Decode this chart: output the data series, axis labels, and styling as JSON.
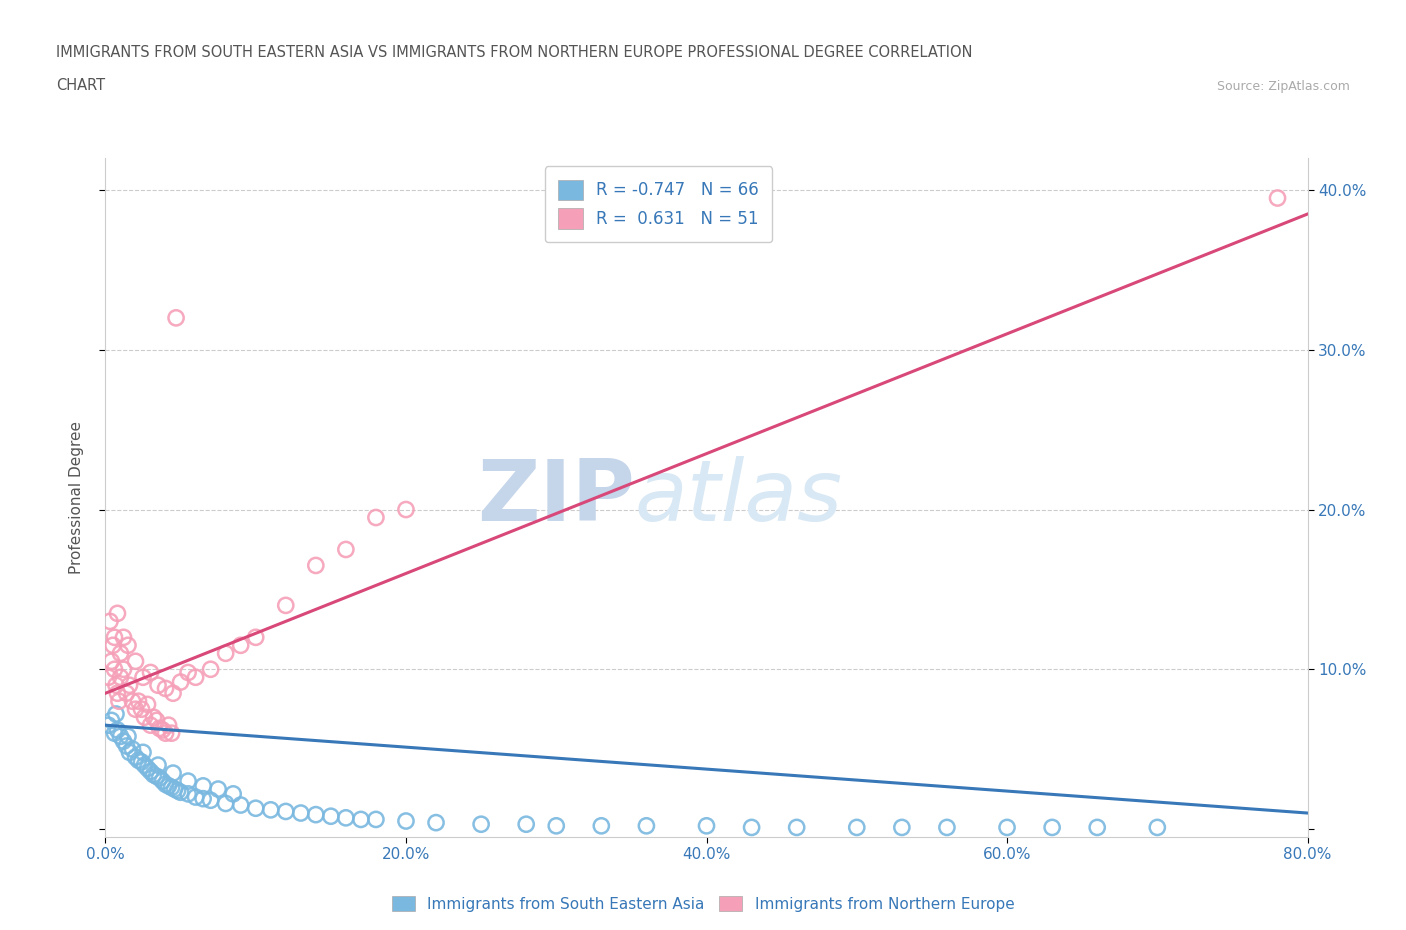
{
  "title_line1": "IMMIGRANTS FROM SOUTH EASTERN ASIA VS IMMIGRANTS FROM NORTHERN EUROPE PROFESSIONAL DEGREE CORRELATION",
  "title_line2": "CHART",
  "source_text": "Source: ZipAtlas.com",
  "ylabel": "Professional Degree",
  "xlim": [
    0.0,
    0.8
  ],
  "ylim": [
    -0.005,
    0.42
  ],
  "yticks": [
    0.0,
    0.1,
    0.2,
    0.3,
    0.4
  ],
  "ytick_labels_right": [
    "",
    "10.0%",
    "20.0%",
    "30.0%",
    "40.0%"
  ],
  "xticks": [
    0.0,
    0.2,
    0.4,
    0.6,
    0.8
  ],
  "xtick_labels": [
    "0.0%",
    "20.0%",
    "40.0%",
    "60.0%",
    "80.0%"
  ],
  "blue_color": "#7ab8e0",
  "pink_color": "#f5a0b8",
  "blue_line_color": "#3878b8",
  "pink_line_color": "#d84878",
  "legend_R1": "R = -0.747",
  "legend_N1": "N = 66",
  "legend_R2": "R =  0.631",
  "legend_N2": "N = 51",
  "watermark_zip": "ZIP",
  "watermark_atlas": "atlas",
  "watermark_color": "#ccd8ee",
  "background_color": "#ffffff",
  "grid_color": "#cccccc",
  "blue_scatter_x": [
    0.002,
    0.004,
    0.006,
    0.008,
    0.01,
    0.012,
    0.014,
    0.016,
    0.018,
    0.02,
    0.022,
    0.024,
    0.026,
    0.028,
    0.03,
    0.032,
    0.034,
    0.036,
    0.038,
    0.04,
    0.042,
    0.044,
    0.046,
    0.048,
    0.05,
    0.055,
    0.06,
    0.065,
    0.07,
    0.08,
    0.09,
    0.1,
    0.11,
    0.12,
    0.13,
    0.14,
    0.15,
    0.16,
    0.17,
    0.18,
    0.2,
    0.22,
    0.25,
    0.28,
    0.3,
    0.33,
    0.36,
    0.4,
    0.43,
    0.46,
    0.5,
    0.53,
    0.56,
    0.6,
    0.63,
    0.66,
    0.7,
    0.007,
    0.015,
    0.025,
    0.035,
    0.045,
    0.055,
    0.065,
    0.075,
    0.085
  ],
  "blue_scatter_y": [
    0.065,
    0.068,
    0.06,
    0.062,
    0.058,
    0.055,
    0.052,
    0.048,
    0.05,
    0.045,
    0.043,
    0.042,
    0.04,
    0.038,
    0.036,
    0.034,
    0.033,
    0.032,
    0.03,
    0.028,
    0.027,
    0.026,
    0.025,
    0.024,
    0.023,
    0.022,
    0.02,
    0.019,
    0.018,
    0.016,
    0.015,
    0.013,
    0.012,
    0.011,
    0.01,
    0.009,
    0.008,
    0.007,
    0.006,
    0.006,
    0.005,
    0.004,
    0.003,
    0.003,
    0.002,
    0.002,
    0.002,
    0.002,
    0.001,
    0.001,
    0.001,
    0.001,
    0.001,
    0.001,
    0.001,
    0.001,
    0.001,
    0.072,
    0.058,
    0.048,
    0.04,
    0.035,
    0.03,
    0.027,
    0.025,
    0.022
  ],
  "pink_scatter_x": [
    0.002,
    0.004,
    0.005,
    0.006,
    0.007,
    0.008,
    0.009,
    0.01,
    0.012,
    0.014,
    0.016,
    0.018,
    0.02,
    0.022,
    0.024,
    0.026,
    0.028,
    0.03,
    0.032,
    0.034,
    0.036,
    0.038,
    0.04,
    0.042,
    0.044,
    0.003,
    0.006,
    0.008,
    0.01,
    0.012,
    0.015,
    0.02,
    0.025,
    0.03,
    0.035,
    0.04,
    0.045,
    0.05,
    0.055,
    0.06,
    0.07,
    0.08,
    0.09,
    0.1,
    0.12,
    0.14,
    0.16,
    0.18,
    0.2,
    0.047,
    0.78
  ],
  "pink_scatter_y": [
    0.095,
    0.105,
    0.115,
    0.1,
    0.09,
    0.085,
    0.08,
    0.095,
    0.1,
    0.085,
    0.09,
    0.08,
    0.075,
    0.08,
    0.075,
    0.07,
    0.078,
    0.065,
    0.07,
    0.068,
    0.063,
    0.062,
    0.06,
    0.065,
    0.06,
    0.13,
    0.12,
    0.135,
    0.11,
    0.12,
    0.115,
    0.105,
    0.095,
    0.098,
    0.09,
    0.088,
    0.085,
    0.092,
    0.098,
    0.095,
    0.1,
    0.11,
    0.115,
    0.12,
    0.14,
    0.165,
    0.175,
    0.195,
    0.2,
    0.32,
    0.395
  ],
  "blue_trend_x": [
    0.0,
    0.8
  ],
  "blue_trend_y": [
    0.065,
    0.01
  ],
  "pink_trend_x": [
    0.0,
    0.8
  ],
  "pink_trend_y": [
    0.085,
    0.385
  ]
}
